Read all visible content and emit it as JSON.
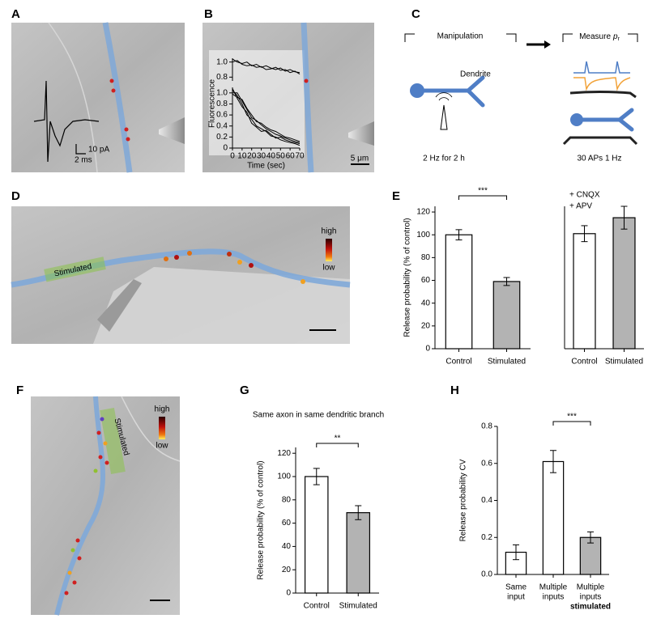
{
  "panel_labels": [
    "A",
    "B",
    "C",
    "D",
    "E",
    "F",
    "G",
    "H"
  ],
  "panel_a": {
    "scale_y": "10 pA",
    "scale_x": "2 ms"
  },
  "panel_b": {
    "scale": "5 μm"
  },
  "panel_c": {
    "manipulation": "Manipulation",
    "measure": "Measure",
    "measure_symbol": "p",
    "measure_subscript": "r",
    "dendrite": "Dendrite",
    "stim_protocol": "2 Hz for 2 h",
    "measure_protocol": "30 APs 1 Hz"
  },
  "panel_d": {
    "stimulated": "Stimulated",
    "high": "high",
    "low": "low"
  },
  "panel_f": {
    "stimulated": "Stimulated",
    "high": "high",
    "low": "low"
  },
  "chart_data": [
    {
      "type": "line",
      "x": [
        0,
        5,
        10,
        15,
        20,
        25,
        30,
        35,
        40,
        45,
        50,
        55,
        60,
        65,
        70
      ],
      "xlim": [
        0,
        70
      ],
      "ylim": [
        0.75,
        1.05
      ],
      "yticks": [
        0.8,
        {
          "value": 1,
          "label": "1.0"
        }
      ],
      "series": [
        {
          "color": "#000000",
          "values": [
            1.04,
            1.0,
            0.98,
            1.0,
            0.95,
            0.97,
            0.93,
            0.95,
            0.92,
            0.9,
            0.92,
            0.88,
            0.9,
            0.87,
            0.86
          ]
        },
        {
          "color": "#000000",
          "values": [
            1.0,
            1.02,
            0.97,
            0.95,
            0.96,
            0.93,
            0.94,
            0.9,
            0.91,
            0.93,
            0.89,
            0.9,
            0.86,
            0.88,
            0.84
          ]
        }
      ]
    },
    {
      "type": "line",
      "x": [
        0,
        5,
        10,
        15,
        20,
        25,
        30,
        35,
        40,
        45,
        50,
        55,
        60,
        65,
        70
      ],
      "xlim": [
        0,
        70
      ],
      "ylim": [
        0,
        1.1
      ],
      "yticks": [
        0,
        0.2,
        0.4,
        0.6,
        0.8,
        {
          "value": 1,
          "label": "1.0"
        }
      ],
      "xticks": [
        0,
        10,
        20,
        30,
        40,
        50,
        60,
        70
      ],
      "x_label": "Time (sec)",
      "y_label": "Fluorescence",
      "series": [
        {
          "color": "#000000",
          "values": [
            1.05,
            0.95,
            0.8,
            0.6,
            0.52,
            0.4,
            0.35,
            0.3,
            0.22,
            0.2,
            0.15,
            0.12,
            0.1,
            0.08,
            0.05
          ]
        },
        {
          "color": "#000000",
          "values": [
            1.0,
            1.0,
            0.85,
            0.7,
            0.55,
            0.5,
            0.42,
            0.35,
            0.3,
            0.25,
            0.22,
            0.18,
            0.15,
            0.12,
            0.1
          ]
        },
        {
          "color": "#000000",
          "values": [
            1.08,
            0.9,
            0.75,
            0.65,
            0.45,
            0.38,
            0.3,
            0.32,
            0.25,
            0.18,
            0.2,
            0.15,
            0.12,
            0.1,
            0.08
          ]
        },
        {
          "color": "#000000",
          "values": [
            0.98,
            0.92,
            0.88,
            0.72,
            0.6,
            0.48,
            0.45,
            0.38,
            0.33,
            0.3,
            0.25,
            0.2,
            0.18,
            0.15,
            0.12
          ]
        }
      ]
    },
    {
      "type": "bar",
      "y_label": "Release probability (% of control)",
      "ylim": [
        0,
        125
      ],
      "yticks": [
        0,
        20,
        40,
        60,
        80,
        100,
        120
      ],
      "categories": [
        "Control",
        "Stimulated"
      ],
      "values": [
        100,
        59
      ],
      "errors": [
        4.5,
        3.5
      ],
      "colors": [
        "#ffffff",
        "#b3b3b3"
      ],
      "significance": "***"
    },
    {
      "type": "bar",
      "ylim": [
        0,
        125
      ],
      "categories": [
        "Control",
        "Stimulated"
      ],
      "values": [
        101,
        115
      ],
      "errors": [
        7,
        10
      ],
      "colors": [
        "#ffffff",
        "#b3b3b3"
      ],
      "annotations": [
        "+ CNQX",
        "+ APV"
      ]
    },
    {
      "type": "bar",
      "title": "Same axon in same dendritic branch",
      "y_label": "Release probability (% of control)",
      "ylim": [
        0,
        125
      ],
      "yticks": [
        0,
        20,
        40,
        60,
        80,
        100,
        120
      ],
      "categories": [
        "Control",
        "Stimulated"
      ],
      "values": [
        100,
        69
      ],
      "errors": [
        7,
        6
      ],
      "colors": [
        "#ffffff",
        "#b3b3b3"
      ],
      "significance": "**"
    },
    {
      "type": "bar",
      "y_label": "Release probability CV",
      "ylim": [
        0,
        0.8
      ],
      "yticks": [
        {
          "value": 0,
          "label": "0.0"
        },
        0.2,
        0.4,
        0.6,
        0.8
      ],
      "categories": [
        [
          "Same",
          "input"
        ],
        [
          "Multiple",
          "inputs"
        ],
        [
          "Multiple",
          "inputs",
          "stimulated"
        ]
      ],
      "values": [
        0.12,
        0.61,
        0.2
      ],
      "errors": [
        0.04,
        0.06,
        0.03
      ],
      "colors": [
        "#ffffff",
        "#ffffff",
        "#b3b3b3"
      ],
      "significance": "***"
    }
  ]
}
